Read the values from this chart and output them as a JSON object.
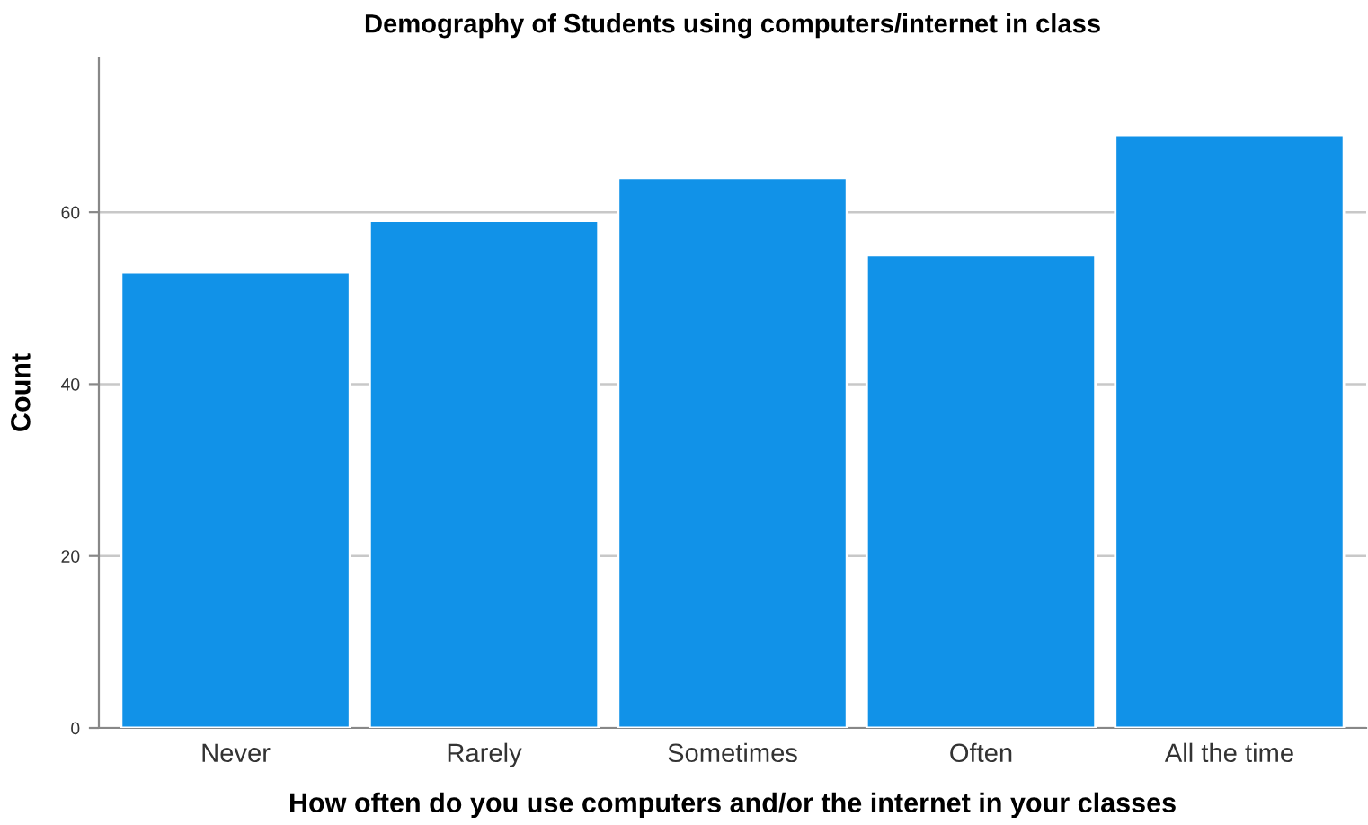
{
  "chart_data": {
    "type": "bar",
    "title": "Demography of Students using computers/internet in class",
    "xlabel": "How often do you use computers and/or the internet in your classes",
    "ylabel": "Count",
    "categories": [
      "Never",
      "Rarely",
      "Sometimes",
      "Often",
      "All the time"
    ],
    "values": [
      53,
      59,
      64,
      55,
      69
    ],
    "color": "#1192e8",
    "ylim": [
      0,
      78
    ],
    "yticks": [
      0,
      20,
      40,
      60
    ],
    "grid": "y"
  }
}
